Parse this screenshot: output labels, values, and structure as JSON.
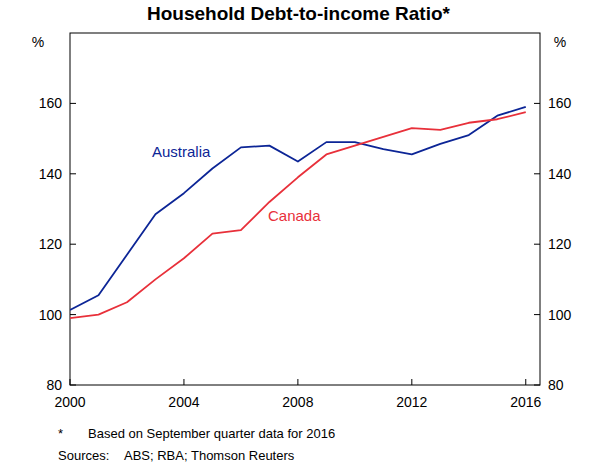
{
  "chart_data": {
    "type": "line",
    "title": "Household Debt-to-income Ratio*",
    "y_label": "%",
    "y2_label": "%",
    "footnote_marker": "*",
    "footnote": "Based on September quarter data for 2016",
    "source_label": "Sources:",
    "source": "ABS; RBA; Thomson Reuters",
    "x": [
      2000,
      2001,
      2002,
      2003,
      2004,
      2005,
      2006,
      2007,
      2008,
      2009,
      2010,
      2011,
      2012,
      2013,
      2014,
      2015,
      2016
    ],
    "series": [
      {
        "name": "Australia",
        "color": "#0c2596",
        "values": [
          101.3,
          105.5,
          117,
          128.5,
          134.5,
          141.5,
          147.5,
          148,
          143.5,
          149,
          149,
          147,
          145.5,
          148.5,
          151,
          156.5,
          159
        ]
      },
      {
        "name": "Canada",
        "color": "#e8303a",
        "values": [
          99,
          100,
          103.5,
          110,
          116,
          123,
          124,
          132,
          139,
          145.5,
          148,
          150.5,
          153,
          152.5,
          154.5,
          155.5,
          157.5
        ]
      }
    ],
    "xlim": [
      2000,
      2016.5
    ],
    "xticks": [
      2000,
      2004,
      2008,
      2012,
      2016
    ],
    "ylim": [
      80,
      180
    ],
    "yticks": [
      80,
      100,
      120,
      140,
      160
    ],
    "y2lim": [
      80,
      180
    ],
    "y2ticks": [
      80,
      100,
      120,
      140,
      160
    ],
    "grid": false
  }
}
